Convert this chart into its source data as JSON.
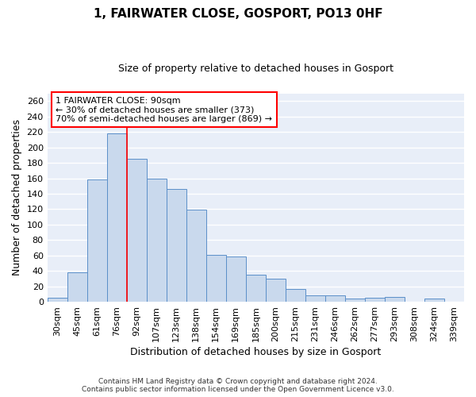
{
  "title": "1, FAIRWATER CLOSE, GOSPORT, PO13 0HF",
  "subtitle": "Size of property relative to detached houses in Gosport",
  "xlabel": "Distribution of detached houses by size in Gosport",
  "ylabel": "Number of detached properties",
  "bar_labels": [
    "30sqm",
    "45sqm",
    "61sqm",
    "76sqm",
    "92sqm",
    "107sqm",
    "123sqm",
    "138sqm",
    "154sqm",
    "169sqm",
    "185sqm",
    "200sqm",
    "215sqm",
    "231sqm",
    "246sqm",
    "262sqm",
    "277sqm",
    "293sqm",
    "308sqm",
    "324sqm",
    "339sqm"
  ],
  "bar_values": [
    5,
    38,
    159,
    218,
    185,
    160,
    146,
    119,
    61,
    59,
    35,
    30,
    17,
    8,
    8,
    4,
    5,
    6,
    0,
    4,
    0
  ],
  "bar_color": "#c9d9ed",
  "bar_edge_color": "#5b8fc9",
  "background_color": "#e8eef8",
  "fig_background_color": "#ffffff",
  "grid_color": "#ffffff",
  "annotation_line1": "1 FAIRWATER CLOSE: 90sqm",
  "annotation_line2": "← 30% of detached houses are smaller (373)",
  "annotation_line3": "70% of semi-detached houses are larger (869) →",
  "red_line_x": 3.5,
  "footnote": "Contains HM Land Registry data © Crown copyright and database right 2024.\nContains public sector information licensed under the Open Government Licence v3.0.",
  "ylim": [
    0,
    270
  ],
  "yticks": [
    0,
    20,
    40,
    60,
    80,
    100,
    120,
    140,
    160,
    180,
    200,
    220,
    240,
    260
  ]
}
